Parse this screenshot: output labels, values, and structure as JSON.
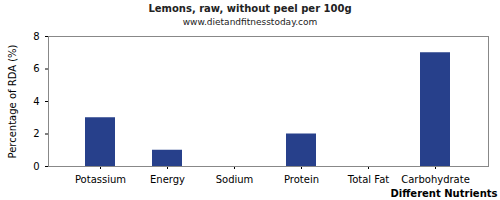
{
  "chart_data": {
    "type": "bar",
    "title": "Lemons, raw, without peel per 100g",
    "subtitle": "www.dietandfitnesstoday.com",
    "x_label": "Different Nutrients",
    "y_label": "Percentage of RDA (%)",
    "categories": [
      "Potassium",
      "Energy",
      "Sodium",
      "Protein",
      "Total Fat",
      "Carbohydrate"
    ],
    "values": [
      3,
      1,
      0,
      2,
      0,
      7
    ],
    "color": "#27408b",
    "ylim": [
      0,
      8
    ],
    "yticks": [
      0,
      2,
      4,
      6,
      8
    ],
    "grid": false
  }
}
